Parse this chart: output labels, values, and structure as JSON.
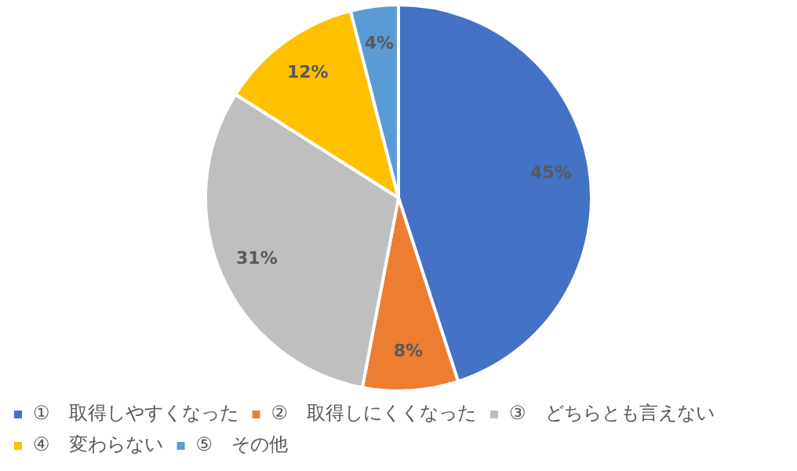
{
  "chart_data": {
    "type": "pie",
    "categories": [
      "①　取得しやすくなった",
      "②　取得しにくくなった",
      "③　どちらとも言えない",
      "④　変わらない",
      "⑤　その他"
    ],
    "values": [
      45,
      8,
      31,
      12,
      4
    ],
    "colors": [
      "#4472c4",
      "#ed7d31",
      "#bfbfbf",
      "#ffc000",
      "#5b9bd5"
    ],
    "value_labels": [
      "45%",
      "8%",
      "31%",
      "12%",
      "4%"
    ],
    "legend": "bottom"
  }
}
